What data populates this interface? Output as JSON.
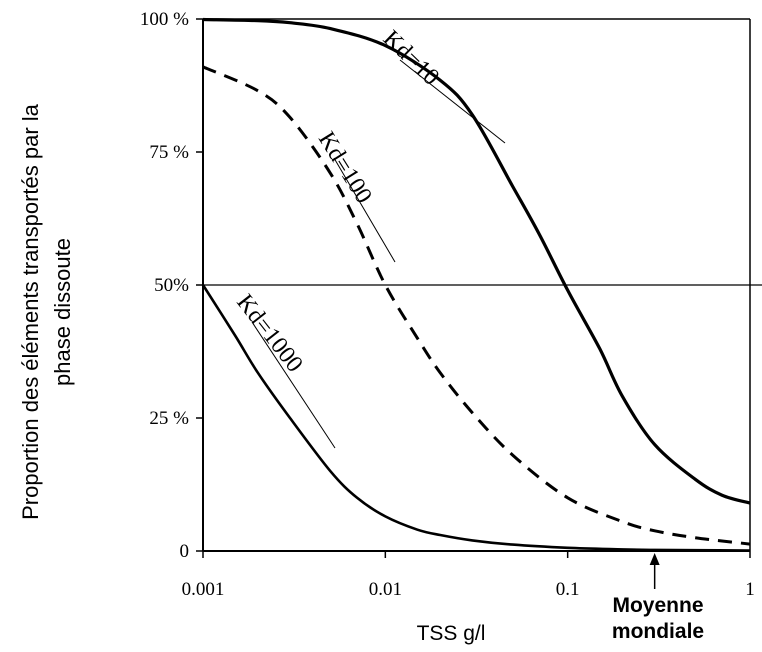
{
  "chart_data": {
    "type": "line",
    "xlabel": "TSS g/l",
    "ylabel": "Proportion des éléments transportés par la phase dissoute",
    "x_scale": "log",
    "xlim": [
      0.001,
      1
    ],
    "ylim": [
      0,
      100
    ],
    "x_ticks": [
      {
        "value": 0.001,
        "label": "0.001"
      },
      {
        "value": 0.01,
        "label": "0.01"
      },
      {
        "value": 0.1,
        "label": "0.1"
      },
      {
        "value": 1,
        "label": "1"
      }
    ],
    "y_ticks": [
      {
        "value": 0,
        "label": "0"
      },
      {
        "value": 25,
        "label": "25 %"
      },
      {
        "value": 50,
        "label": "50%"
      },
      {
        "value": 75,
        "label": "75 %"
      },
      {
        "value": 100,
        "label": "100 %"
      }
    ],
    "reference_line": {
      "y": 50
    },
    "series": [
      {
        "name": "Kd=10",
        "style": "solid",
        "x": [
          0.001,
          0.002,
          0.003,
          0.005,
          0.01,
          0.02,
          0.03,
          0.05,
          0.07,
          0.1,
          0.15,
          0.2,
          0.3,
          0.5,
          0.7,
          1
        ],
        "y": [
          99.9,
          99.7,
          99.3,
          98.2,
          95.0,
          88.5,
          82.0,
          68.5,
          59.5,
          49.0,
          38.0,
          29.0,
          20.0,
          13.5,
          10.5,
          9.0
        ]
      },
      {
        "name": "Kd=100",
        "style": "dashed",
        "x": [
          0.001,
          0.002,
          0.003,
          0.005,
          0.007,
          0.01,
          0.015,
          0.02,
          0.03,
          0.05,
          0.1,
          0.2,
          0.3,
          0.5,
          1
        ],
        "y": [
          91.0,
          86.5,
          81.5,
          71.0,
          61.5,
          50.0,
          40.0,
          33.5,
          26.0,
          18.0,
          10.0,
          5.5,
          3.8,
          2.5,
          1.3
        ]
      },
      {
        "name": "Kd=1000",
        "style": "solid",
        "x": [
          0.001,
          0.0015,
          0.002,
          0.003,
          0.005,
          0.007,
          0.01,
          0.015,
          0.02,
          0.03,
          0.05,
          0.1,
          0.2,
          0.3,
          0.5,
          1
        ],
        "y": [
          50.0,
          40.5,
          33.5,
          25.0,
          15.0,
          10.0,
          6.5,
          4.0,
          3.0,
          2.0,
          1.2,
          0.6,
          0.3,
          0.2,
          0.15,
          0.1
        ]
      }
    ],
    "annotation": {
      "label": "Moyenne mondiale",
      "x": 0.3
    }
  }
}
